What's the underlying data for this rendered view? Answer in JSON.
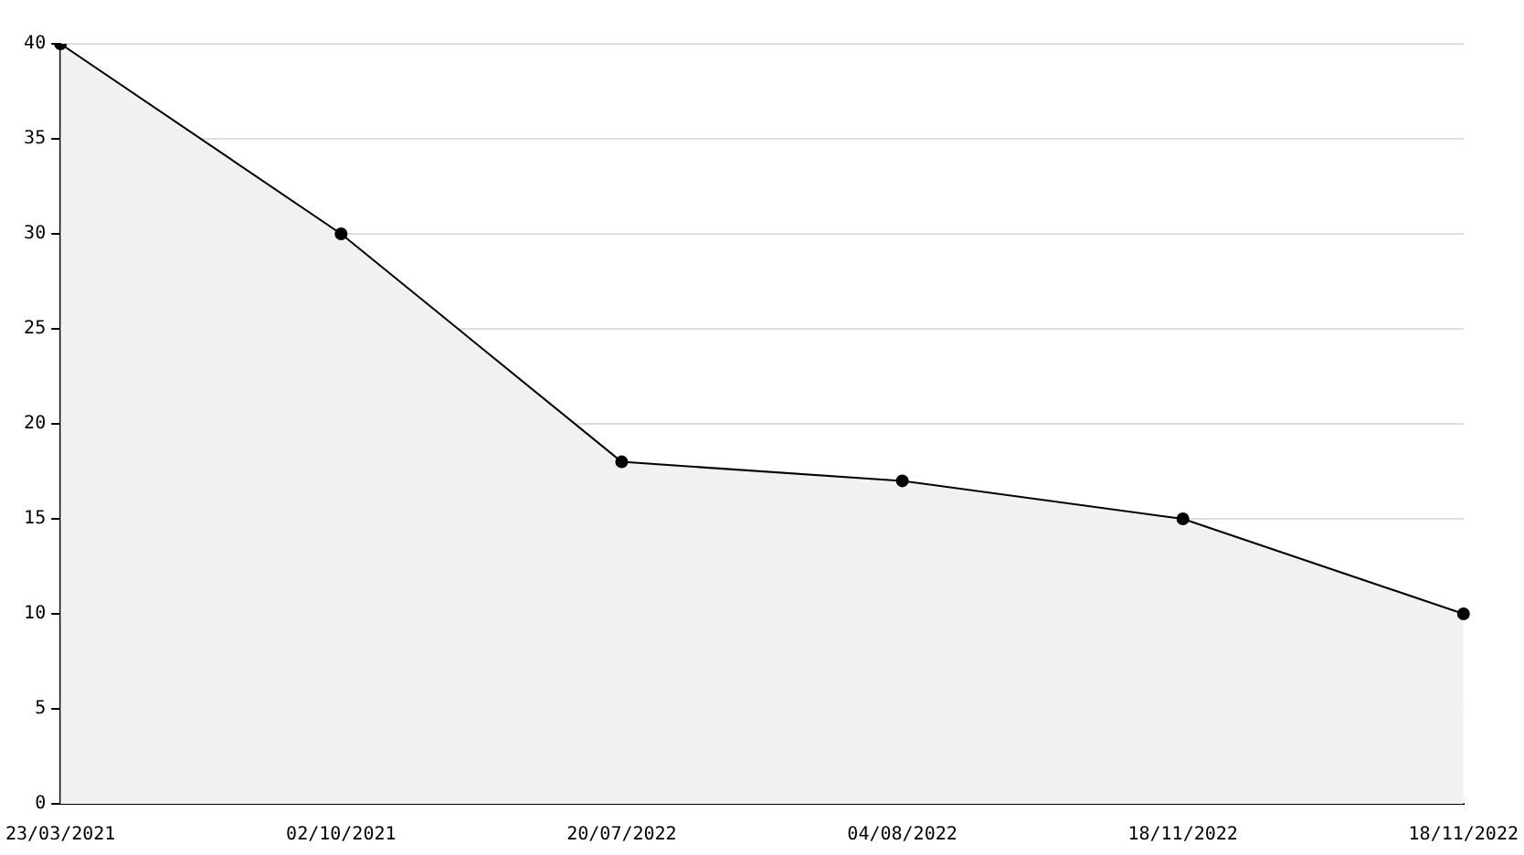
{
  "chart_data": {
    "type": "area",
    "categories": [
      "23/03/2021",
      "02/10/2021",
      "20/07/2022",
      "04/08/2022",
      "18/11/2022",
      "18/11/2022"
    ],
    "values": [
      40,
      30,
      18,
      17,
      15,
      10
    ],
    "color": "#000000",
    "ylim": [
      0,
      40
    ],
    "yticks": [
      0,
      5,
      10,
      15,
      20,
      25,
      30,
      35,
      40
    ],
    "grid": "y",
    "marker": "circle",
    "line_style": "solid"
  }
}
